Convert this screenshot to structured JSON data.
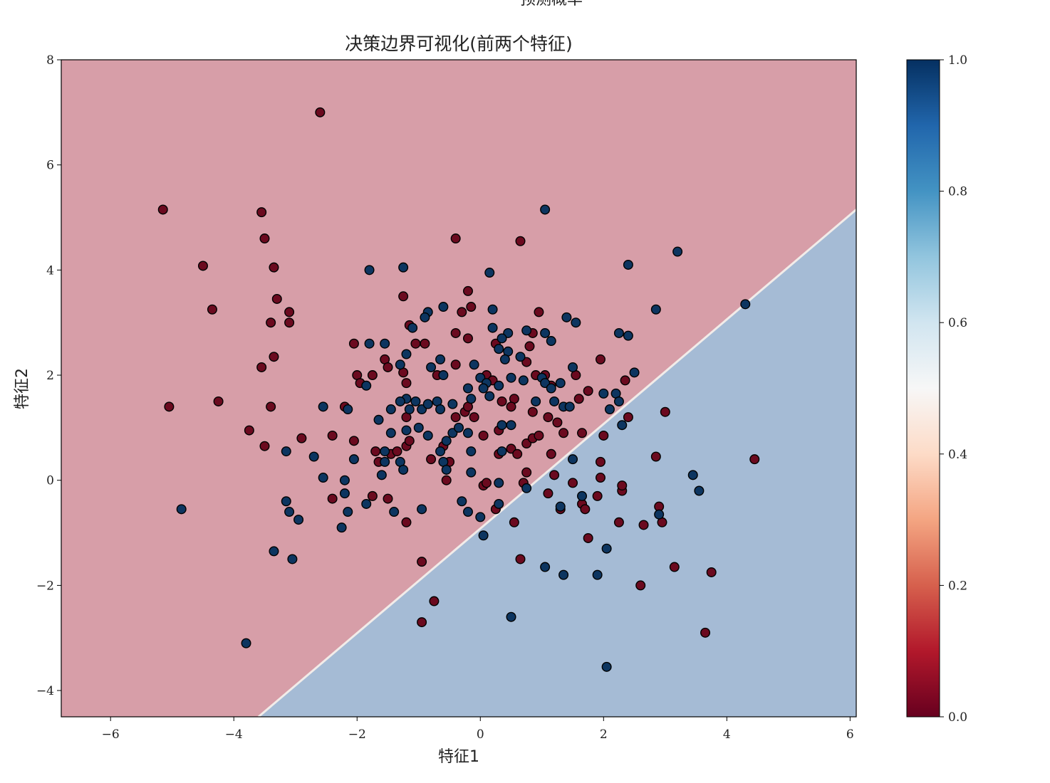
{
  "chart_data": {
    "type": "scatter",
    "title": "决策边界可视化(前两个特征)",
    "xlabel": "特征1",
    "ylabel": "特征2",
    "xlim": [
      -6.8,
      6.1
    ],
    "ylim": [
      -4.5,
      8.0
    ],
    "xticks": [
      -6,
      -4,
      -2,
      0,
      2,
      4,
      6
    ],
    "yticks": [
      -4,
      -2,
      0,
      2,
      4,
      6,
      8
    ],
    "colorbar": {
      "label": "预测概率",
      "range": [
        0.0,
        1.0
      ],
      "ticks": [
        "0.0",
        "0.2",
        "0.4",
        "0.6",
        "0.8",
        "1.0"
      ],
      "colormap": "RdBu"
    },
    "decision_boundary": [
      [
        -3.6,
        -4.5
      ],
      [
        6.1,
        5.15
      ]
    ],
    "region_colors": {
      "class_0": "#d79ea8",
      "class_1": "#a5bbd5"
    },
    "point_colors": {
      "class_0": "#6b0a1f",
      "class_1": "#0d3560"
    },
    "series": [
      {
        "class": 0,
        "points": [
          [
            -2.6,
            7.0
          ],
          [
            -5.15,
            5.15
          ],
          [
            -3.55,
            5.1
          ],
          [
            -3.5,
            4.6
          ],
          [
            -4.5,
            4.08
          ],
          [
            -3.35,
            4.05
          ],
          [
            -4.35,
            3.25
          ],
          [
            -3.3,
            3.45
          ],
          [
            -3.1,
            3.2
          ],
          [
            -3.4,
            3.0
          ],
          [
            -3.1,
            3.0
          ],
          [
            -3.35,
            2.35
          ],
          [
            -3.55,
            2.15
          ],
          [
            -5.05,
            1.4
          ],
          [
            -4.25,
            1.5
          ],
          [
            -3.4,
            1.4
          ],
          [
            -3.75,
            0.95
          ],
          [
            -3.5,
            0.65
          ],
          [
            -2.9,
            0.8
          ],
          [
            -2.4,
            0.85
          ],
          [
            -2.4,
            -0.35
          ],
          [
            -0.4,
            4.6
          ],
          [
            0.65,
            4.55
          ],
          [
            -0.2,
            3.6
          ],
          [
            -0.15,
            3.3
          ],
          [
            -0.3,
            3.2
          ],
          [
            0.95,
            3.2
          ],
          [
            -1.25,
            3.5
          ],
          [
            -1.15,
            2.95
          ],
          [
            -1.05,
            2.6
          ],
          [
            -0.9,
            2.6
          ],
          [
            -0.4,
            2.8
          ],
          [
            -0.2,
            2.7
          ],
          [
            0.25,
            2.6
          ],
          [
            0.85,
            2.8
          ],
          [
            0.8,
            2.55
          ],
          [
            -2.05,
            2.6
          ],
          [
            -2.0,
            2.0
          ],
          [
            -1.95,
            1.85
          ],
          [
            -1.75,
            2.0
          ],
          [
            -1.55,
            2.3
          ],
          [
            -1.5,
            2.15
          ],
          [
            -1.25,
            2.05
          ],
          [
            -1.2,
            1.85
          ],
          [
            -0.7,
            2.0
          ],
          [
            -0.4,
            2.2
          ],
          [
            0.1,
            2.0
          ],
          [
            0.2,
            1.9
          ],
          [
            0.35,
            1.5
          ],
          [
            0.55,
            1.55
          ],
          [
            0.75,
            2.25
          ],
          [
            0.9,
            2.0
          ],
          [
            1.05,
            2.0
          ],
          [
            1.15,
            1.8
          ],
          [
            1.55,
            2.0
          ],
          [
            1.95,
            2.3
          ],
          [
            1.75,
            1.7
          ],
          [
            1.6,
            1.55
          ],
          [
            2.35,
            1.9
          ],
          [
            -2.2,
            1.4
          ],
          [
            -2.05,
            0.75
          ],
          [
            -1.7,
            0.55
          ],
          [
            -1.65,
            0.35
          ],
          [
            -1.45,
            0.5
          ],
          [
            -1.35,
            0.55
          ],
          [
            -1.2,
            0.65
          ],
          [
            -1.15,
            0.75
          ],
          [
            -1.2,
            1.2
          ],
          [
            -0.8,
            0.4
          ],
          [
            -0.6,
            0.65
          ],
          [
            -0.5,
            0.35
          ],
          [
            -0.55,
            0.0
          ],
          [
            -0.4,
            1.2
          ],
          [
            -0.25,
            1.3
          ],
          [
            -0.2,
            1.4
          ],
          [
            -0.1,
            1.2
          ],
          [
            0.05,
            0.85
          ],
          [
            0.3,
            0.95
          ],
          [
            0.3,
            0.5
          ],
          [
            0.5,
            1.4
          ],
          [
            0.5,
            0.6
          ],
          [
            0.6,
            0.5
          ],
          [
            0.75,
            0.7
          ],
          [
            0.85,
            1.3
          ],
          [
            0.85,
            0.8
          ],
          [
            0.95,
            0.85
          ],
          [
            1.1,
            1.2
          ],
          [
            1.25,
            1.1
          ],
          [
            1.35,
            0.9
          ],
          [
            1.15,
            0.5
          ],
          [
            1.65,
            0.9
          ],
          [
            2.0,
            0.85
          ],
          [
            2.4,
            1.2
          ],
          [
            3.0,
            1.3
          ],
          [
            -1.75,
            -0.3
          ],
          [
            -1.5,
            -0.35
          ],
          [
            -1.2,
            -0.8
          ],
          [
            -0.95,
            -1.55
          ],
          [
            -0.75,
            -2.3
          ],
          [
            -0.95,
            -2.7
          ],
          [
            0.05,
            -0.1
          ],
          [
            0.1,
            -0.05
          ],
          [
            0.25,
            -0.55
          ],
          [
            0.55,
            -0.8
          ],
          [
            0.65,
            -1.5
          ],
          [
            0.7,
            -0.05
          ],
          [
            0.75,
            0.15
          ],
          [
            1.2,
            0.1
          ],
          [
            1.1,
            -0.25
          ],
          [
            1.3,
            -0.55
          ],
          [
            1.5,
            -0.05
          ],
          [
            1.65,
            -0.45
          ],
          [
            1.7,
            -0.55
          ],
          [
            1.75,
            -1.1
          ],
          [
            1.9,
            -0.3
          ],
          [
            1.95,
            0.35
          ],
          [
            1.95,
            0.05
          ],
          [
            2.25,
            -0.8
          ],
          [
            2.3,
            -0.2
          ],
          [
            2.3,
            -0.1
          ],
          [
            2.65,
            -0.85
          ],
          [
            2.6,
            -2.0
          ],
          [
            2.85,
            0.45
          ],
          [
            2.9,
            -0.5
          ],
          [
            2.95,
            -0.8
          ],
          [
            3.15,
            -1.65
          ],
          [
            3.65,
            -2.9
          ],
          [
            3.75,
            -1.75
          ],
          [
            4.45,
            0.4
          ]
        ]
      },
      {
        "class": 1,
        "points": [
          [
            1.05,
            5.15
          ],
          [
            0.15,
            3.95
          ],
          [
            -1.25,
            4.05
          ],
          [
            -1.8,
            4.0
          ],
          [
            2.4,
            4.1
          ],
          [
            3.2,
            4.35
          ],
          [
            4.3,
            3.35
          ],
          [
            2.85,
            3.25
          ],
          [
            -0.6,
            3.3
          ],
          [
            -0.85,
            3.2
          ],
          [
            -0.9,
            3.1
          ],
          [
            0.2,
            3.25
          ],
          [
            1.4,
            3.1
          ],
          [
            1.55,
            3.0
          ],
          [
            0.2,
            2.9
          ],
          [
            0.45,
            2.8
          ],
          [
            0.75,
            2.85
          ],
          [
            1.05,
            2.8
          ],
          [
            1.15,
            2.65
          ],
          [
            2.25,
            2.8
          ],
          [
            2.4,
            2.75
          ],
          [
            0.35,
            2.7
          ],
          [
            0.3,
            2.5
          ],
          [
            0.45,
            2.45
          ],
          [
            -1.1,
            2.9
          ],
          [
            -1.55,
            2.6
          ],
          [
            -1.8,
            2.6
          ],
          [
            -1.2,
            2.4
          ],
          [
            -1.3,
            2.2
          ],
          [
            -0.8,
            2.15
          ],
          [
            -0.65,
            2.3
          ],
          [
            -0.6,
            2.0
          ],
          [
            -0.1,
            2.2
          ],
          [
            0.0,
            1.95
          ],
          [
            0.1,
            1.85
          ],
          [
            0.05,
            1.75
          ],
          [
            -0.2,
            1.75
          ],
          [
            -0.15,
            1.55
          ],
          [
            0.15,
            1.6
          ],
          [
            0.3,
            1.8
          ],
          [
            0.4,
            2.3
          ],
          [
            0.5,
            1.95
          ],
          [
            0.65,
            2.35
          ],
          [
            0.7,
            1.9
          ],
          [
            0.9,
            1.5
          ],
          [
            1.0,
            1.95
          ],
          [
            1.05,
            1.85
          ],
          [
            1.15,
            1.75
          ],
          [
            1.2,
            1.5
          ],
          [
            1.3,
            1.85
          ],
          [
            1.35,
            1.4
          ],
          [
            1.45,
            1.4
          ],
          [
            1.5,
            2.15
          ],
          [
            2.0,
            1.65
          ],
          [
            2.2,
            1.65
          ],
          [
            2.25,
            1.5
          ],
          [
            2.1,
            1.35
          ],
          [
            2.5,
            2.05
          ],
          [
            -1.85,
            1.8
          ],
          [
            -1.2,
            1.55
          ],
          [
            -1.3,
            1.5
          ],
          [
            -1.15,
            1.35
          ],
          [
            -1.05,
            1.5
          ],
          [
            -0.95,
            1.35
          ],
          [
            -0.85,
            1.45
          ],
          [
            -0.7,
            1.5
          ],
          [
            -0.65,
            1.35
          ],
          [
            -0.45,
            1.45
          ],
          [
            -1.45,
            1.35
          ],
          [
            -2.15,
            1.35
          ],
          [
            -2.55,
            1.4
          ],
          [
            -1.65,
            1.15
          ],
          [
            -1.2,
            0.95
          ],
          [
            -1.0,
            1.0
          ],
          [
            -0.85,
            0.85
          ],
          [
            -0.55,
            0.75
          ],
          [
            -0.45,
            0.9
          ],
          [
            -0.65,
            0.55
          ],
          [
            -0.6,
            0.35
          ],
          [
            -0.55,
            0.2
          ],
          [
            -0.35,
            1.0
          ],
          [
            -0.2,
            0.9
          ],
          [
            -0.15,
            0.55
          ],
          [
            0.35,
            0.55
          ],
          [
            0.35,
            1.05
          ],
          [
            0.5,
            1.05
          ],
          [
            -1.45,
            0.9
          ],
          [
            -1.55,
            0.55
          ],
          [
            -1.55,
            0.35
          ],
          [
            -1.6,
            0.1
          ],
          [
            -1.3,
            0.35
          ],
          [
            -1.25,
            0.2
          ],
          [
            -2.05,
            0.4
          ],
          [
            -2.7,
            0.45
          ],
          [
            -2.55,
            0.05
          ],
          [
            -2.2,
            0.0
          ],
          [
            -2.2,
            -0.25
          ],
          [
            -2.15,
            -0.6
          ],
          [
            -2.25,
            -0.9
          ],
          [
            -3.15,
            0.55
          ],
          [
            -3.15,
            -0.4
          ],
          [
            -3.1,
            -0.6
          ],
          [
            -2.95,
            -0.75
          ],
          [
            -4.85,
            -0.55
          ],
          [
            -3.35,
            -1.35
          ],
          [
            -3.05,
            -1.5
          ],
          [
            -3.8,
            -3.1
          ],
          [
            -1.85,
            -0.45
          ],
          [
            -1.4,
            -0.6
          ],
          [
            -0.95,
            -0.55
          ],
          [
            -0.3,
            -0.4
          ],
          [
            -0.2,
            -0.6
          ],
          [
            0.0,
            -0.7
          ],
          [
            0.05,
            -1.05
          ],
          [
            -0.15,
            0.15
          ],
          [
            0.3,
            -0.05
          ],
          [
            0.3,
            -0.45
          ],
          [
            0.75,
            -0.15
          ],
          [
            0.5,
            -2.6
          ],
          [
            1.05,
            -1.65
          ],
          [
            1.35,
            -1.8
          ],
          [
            1.3,
            -0.5
          ],
          [
            1.5,
            0.4
          ],
          [
            1.65,
            -0.3
          ],
          [
            1.9,
            -1.8
          ],
          [
            2.05,
            -1.3
          ],
          [
            2.05,
            -3.55
          ],
          [
            2.3,
            1.05
          ],
          [
            2.9,
            -0.65
          ],
          [
            3.45,
            0.1
          ],
          [
            3.55,
            -0.2
          ]
        ]
      }
    ]
  }
}
